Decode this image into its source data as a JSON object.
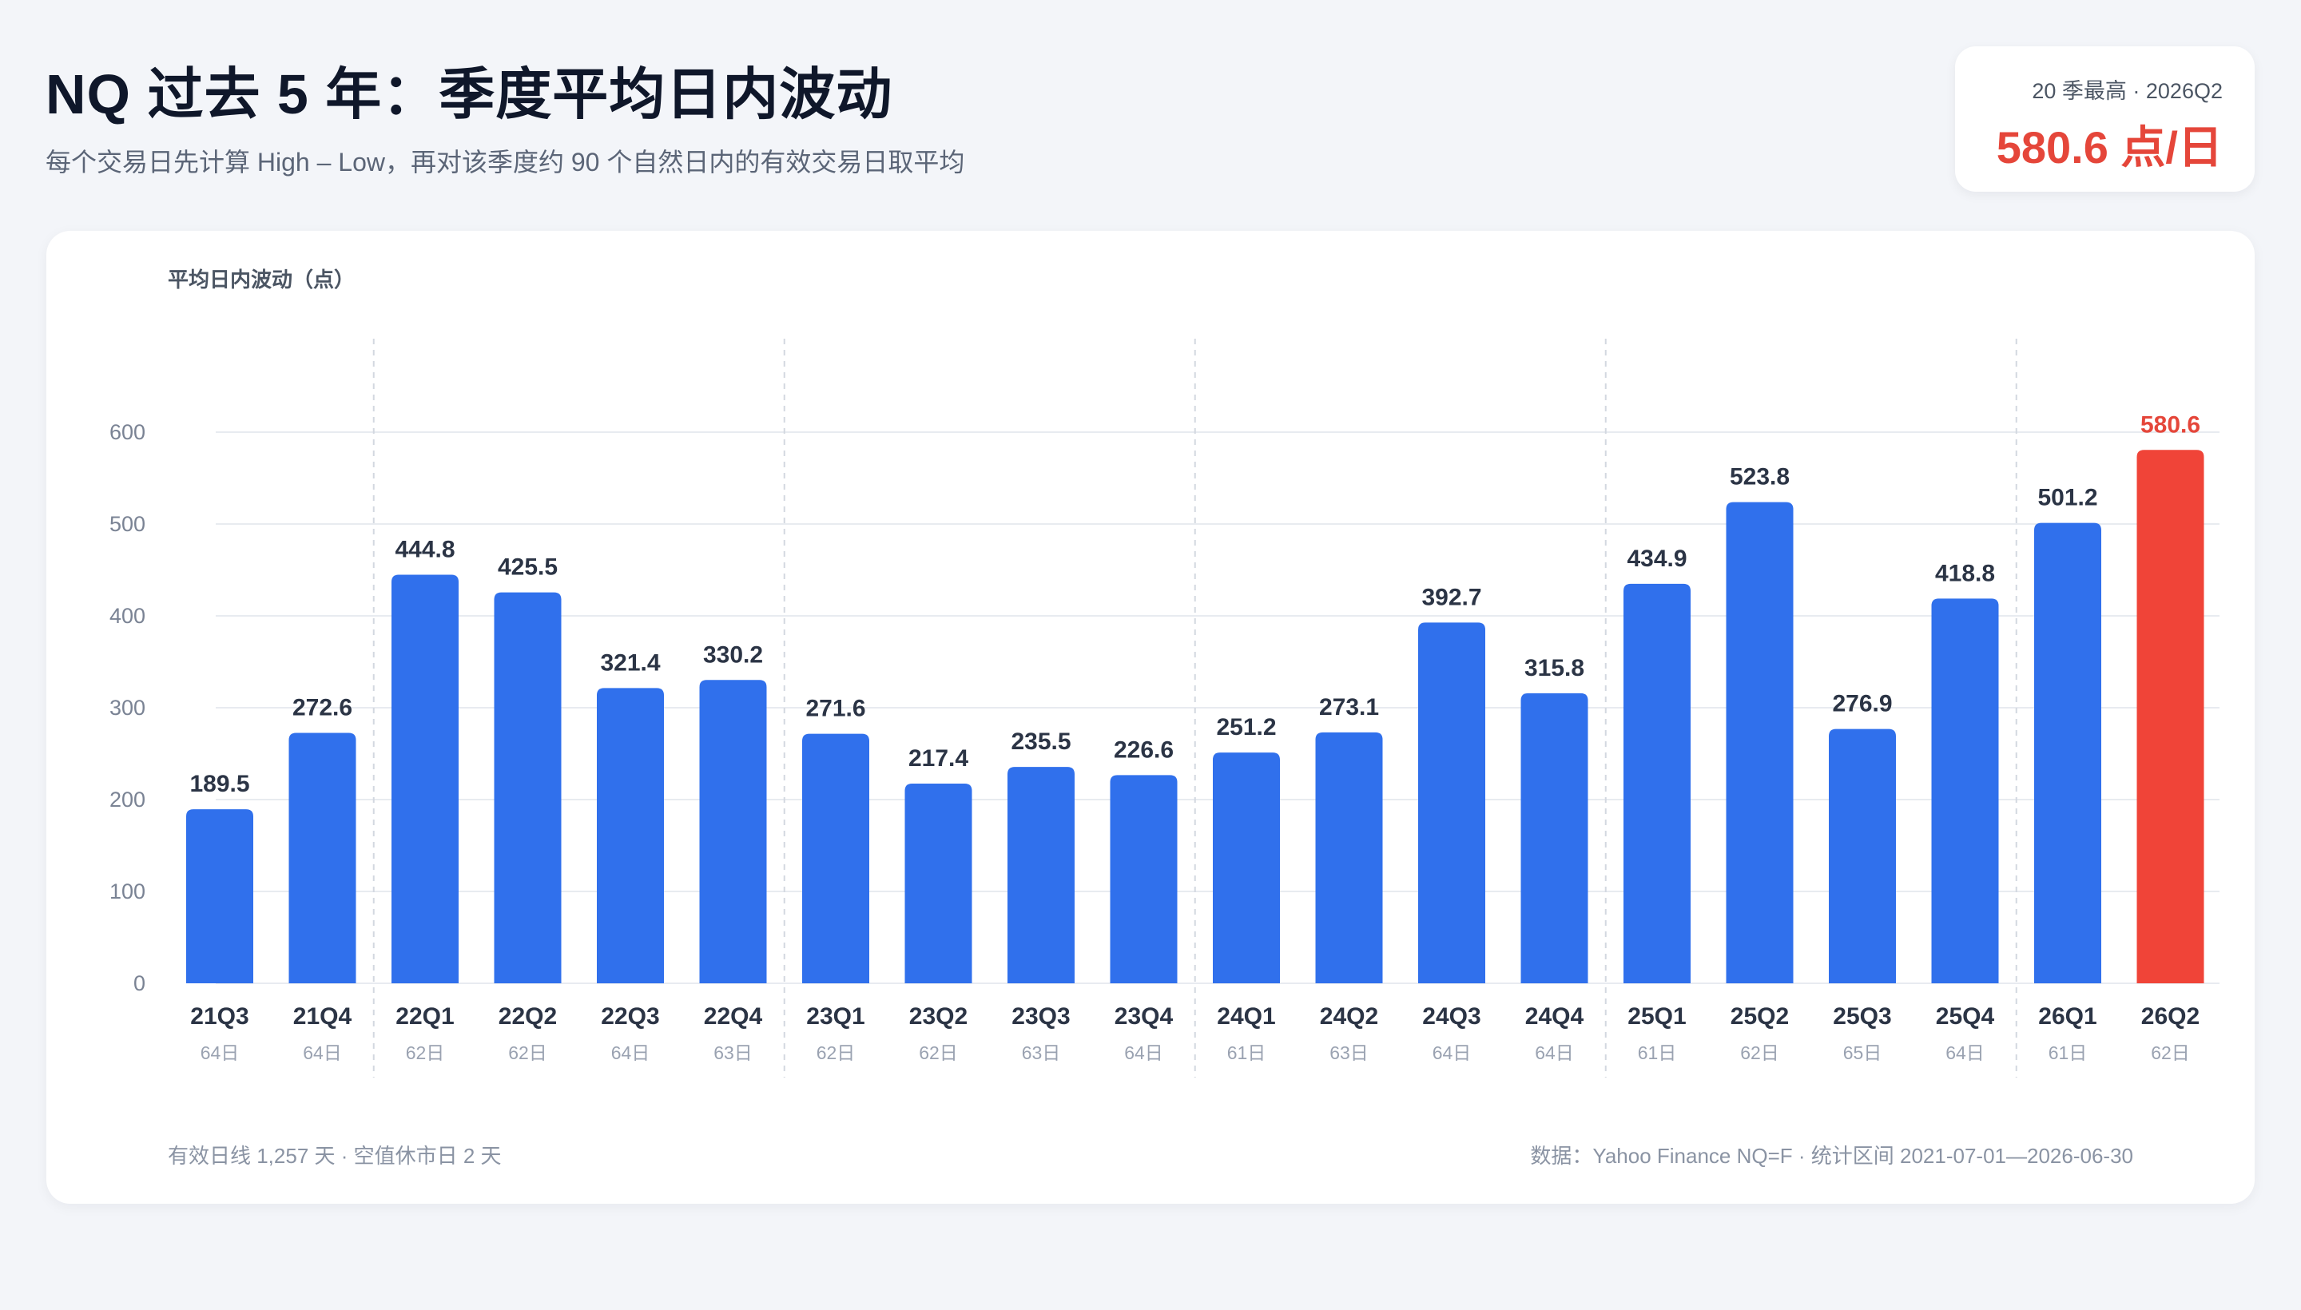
{
  "header": {
    "title": "NQ 过去 5 年：季度平均日内波动",
    "subtitle": "每个交易日先计算 High – Low，再对该季度约 90 个自然日内的有效交易日取平均"
  },
  "highlight_card": {
    "label": "20 季最高 · 2026Q2",
    "value": "580.6 点/日"
  },
  "colors": {
    "bar": "#3070ec",
    "highlight_bar": "#f04438",
    "highlight_text": "#e5463a",
    "value_text": "#2b3445",
    "grid": "#e8ebf0",
    "year_divider": "#d3d8e0"
  },
  "chart_data": {
    "type": "bar",
    "ylabel": "平均日内波动（点）",
    "ylim": [
      0,
      600
    ],
    "yticks": [
      "0",
      "100",
      "200",
      "300",
      "400",
      "500",
      "600"
    ],
    "grid": true,
    "categories": [
      "21Q3",
      "21Q4",
      "22Q1",
      "22Q2",
      "22Q3",
      "22Q4",
      "23Q1",
      "23Q2",
      "23Q3",
      "23Q4",
      "24Q1",
      "24Q2",
      "24Q3",
      "24Q4",
      "25Q1",
      "25Q2",
      "25Q3",
      "25Q4",
      "26Q1",
      "26Q2"
    ],
    "trading_days": [
      "64日",
      "64日",
      "62日",
      "62日",
      "64日",
      "63日",
      "62日",
      "62日",
      "63日",
      "64日",
      "61日",
      "63日",
      "64日",
      "64日",
      "61日",
      "62日",
      "65日",
      "64日",
      "61日",
      "62日"
    ],
    "values": [
      189.5,
      272.6,
      444.8,
      425.5,
      321.4,
      330.2,
      271.6,
      217.4,
      235.5,
      226.6,
      251.2,
      273.1,
      392.7,
      315.8,
      434.9,
      523.8,
      276.9,
      418.8,
      501.2,
      580.6
    ],
    "value_labels": [
      "189.5",
      "272.6",
      "444.8",
      "425.5",
      "321.4",
      "330.2",
      "271.6",
      "217.4",
      "235.5",
      "226.6",
      "251.2",
      "273.1",
      "392.7",
      "315.8",
      "434.9",
      "523.8",
      "276.9",
      "418.8",
      "501.2",
      "580.6"
    ],
    "highlight_index": 19
  },
  "footer": {
    "left": "有效日线 1,257 天 · 空值休市日 2 天",
    "right": "数据：Yahoo Finance NQ=F · 统计区间 2021-07-01—2026-06-30"
  }
}
